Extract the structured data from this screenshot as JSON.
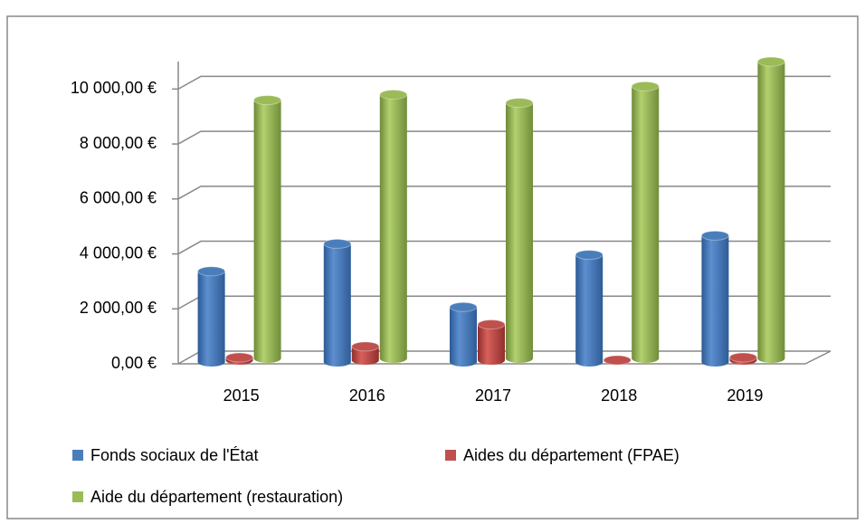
{
  "chart_data": {
    "type": "bar3d",
    "categories": [
      "2015",
      "2016",
      "2017",
      "2018",
      "2019"
    ],
    "series": [
      {
        "name": "Fonds sociaux de l'État",
        "color": "#4a7ebb",
        "values": [
          3300,
          4300,
          2000,
          3900,
          4600
        ]
      },
      {
        "name": "Aides du département (FPAE)",
        "color": "#c0504d",
        "values": [
          100,
          500,
          1300,
          0,
          100
        ]
      },
      {
        "name": "Aide du département (restauration)",
        "color": "#9bbb59",
        "values": [
          9400,
          9600,
          9300,
          9900,
          10800
        ]
      }
    ],
    "ylim": [
      0,
      11000
    ],
    "yticks": [
      {
        "value": 0,
        "label": "0,00 €"
      },
      {
        "value": 2000,
        "label": "2 000,00 €"
      },
      {
        "value": 4000,
        "label": "4 000,00 €"
      },
      {
        "value": 6000,
        "label": "6 000,00 €"
      },
      {
        "value": 8000,
        "label": "8 000,00 €"
      },
      {
        "value": 10000,
        "label": "10 000,00 €"
      }
    ],
    "grid": true
  }
}
